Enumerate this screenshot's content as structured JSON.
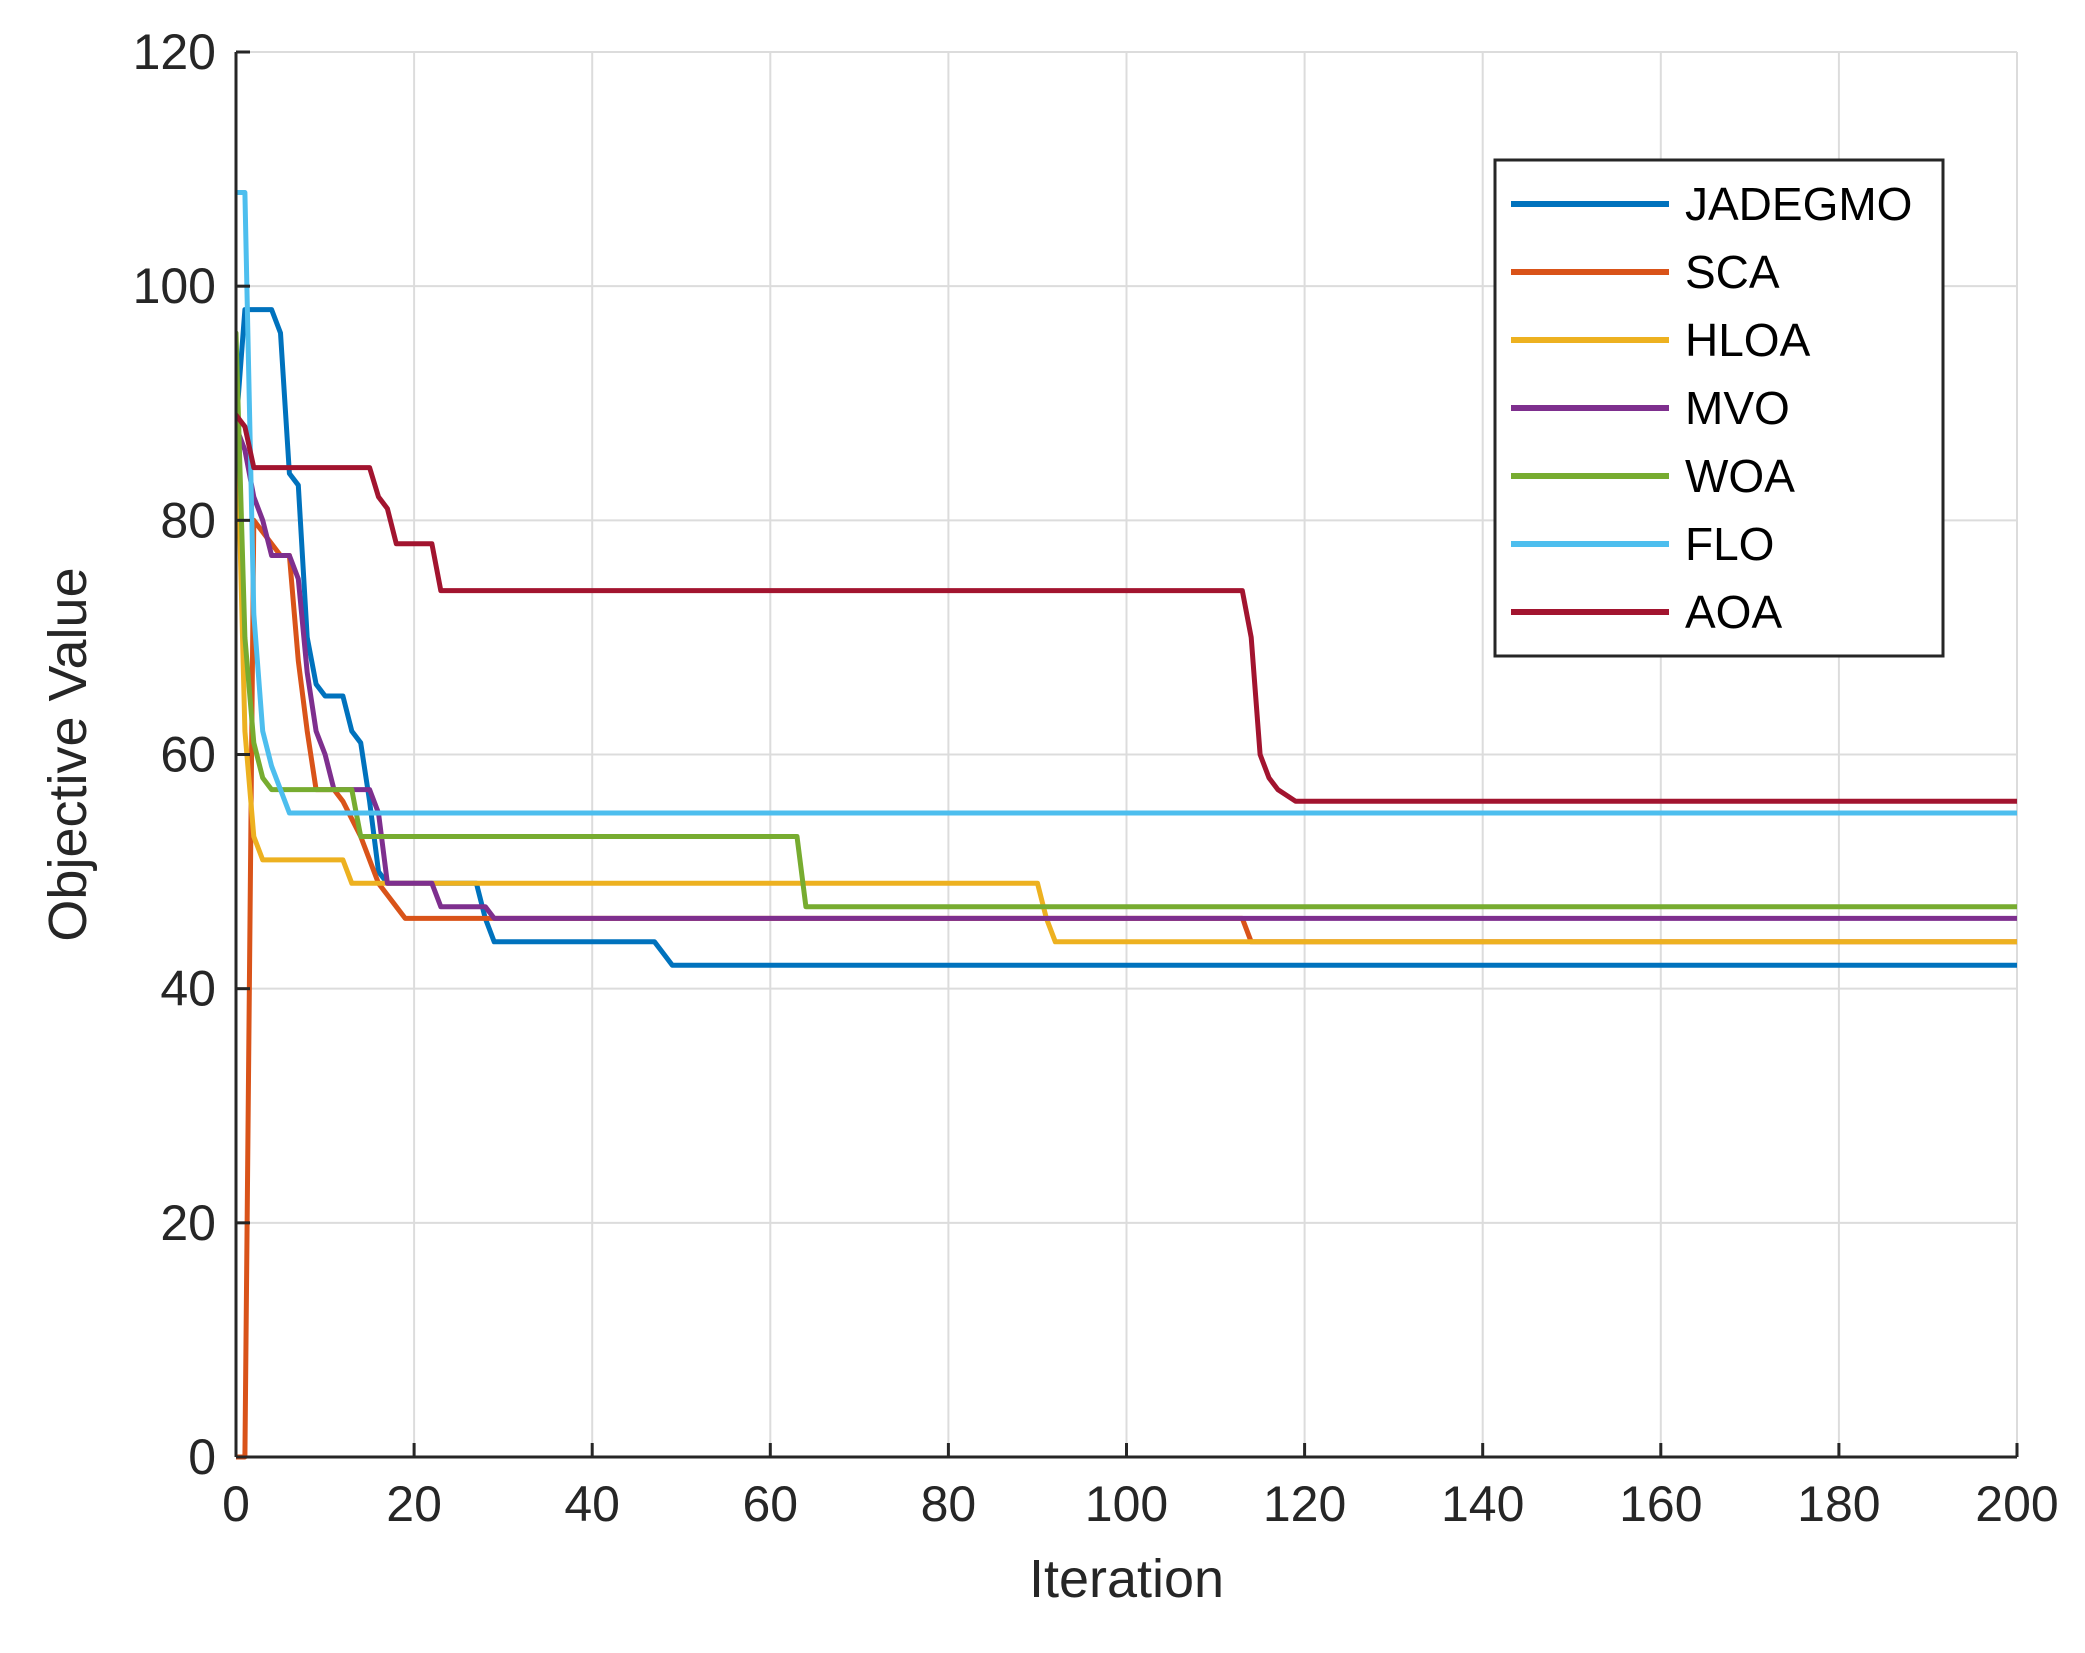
{
  "chart_data": {
    "type": "line",
    "title": "",
    "xlabel": "Iteration",
    "ylabel": "Objective Value",
    "xlim": [
      0,
      200
    ],
    "ylim": [
      0,
      120
    ],
    "xticks": [
      0,
      20,
      40,
      60,
      80,
      100,
      120,
      140,
      160,
      180,
      200
    ],
    "yticks": [
      0,
      20,
      40,
      60,
      80,
      100,
      120
    ],
    "grid": true,
    "legend_position": "top-right",
    "series": [
      {
        "name": "JADEGMO",
        "color": "#0072BD",
        "points": [
          [
            0,
            88
          ],
          [
            1,
            98
          ],
          [
            2,
            98
          ],
          [
            4,
            98
          ],
          [
            5,
            96
          ],
          [
            6,
            84
          ],
          [
            7,
            83
          ],
          [
            8,
            70
          ],
          [
            9,
            66
          ],
          [
            10,
            65
          ],
          [
            12,
            65
          ],
          [
            13,
            62
          ],
          [
            14,
            61
          ],
          [
            15,
            56
          ],
          [
            16,
            50
          ],
          [
            17,
            49
          ],
          [
            26,
            49
          ],
          [
            27,
            49
          ],
          [
            28,
            46
          ],
          [
            29,
            44
          ],
          [
            47,
            44
          ],
          [
            48,
            43
          ],
          [
            49,
            42
          ],
          [
            200,
            42
          ]
        ]
      },
      {
        "name": "SCA",
        "color": "#D95319",
        "points": [
          [
            0,
            0
          ],
          [
            1,
            0
          ],
          [
            2,
            80
          ],
          [
            3,
            79
          ],
          [
            5,
            77
          ],
          [
            6,
            77
          ],
          [
            7,
            68
          ],
          [
            8,
            62
          ],
          [
            9,
            57
          ],
          [
            11,
            57
          ],
          [
            12,
            56
          ],
          [
            14,
            53
          ],
          [
            16,
            49
          ],
          [
            17,
            48
          ],
          [
            18,
            47
          ],
          [
            19,
            46
          ],
          [
            113,
            46
          ],
          [
            114,
            44
          ],
          [
            200,
            44
          ]
        ]
      },
      {
        "name": "HLOA",
        "color": "#EDB120",
        "points": [
          [
            0,
            92
          ],
          [
            1,
            62
          ],
          [
            2,
            53
          ],
          [
            3,
            51
          ],
          [
            12,
            51
          ],
          [
            13,
            49
          ],
          [
            90,
            49
          ],
          [
            91,
            46
          ],
          [
            92,
            44
          ],
          [
            200,
            44
          ]
        ]
      },
      {
        "name": "MVO",
        "color": "#7E2F8E",
        "points": [
          [
            0,
            88
          ],
          [
            1,
            86
          ],
          [
            2,
            82
          ],
          [
            3,
            80
          ],
          [
            4,
            77
          ],
          [
            6,
            77
          ],
          [
            7,
            75
          ],
          [
            8,
            67
          ],
          [
            9,
            62
          ],
          [
            10,
            60
          ],
          [
            11,
            57
          ],
          [
            15,
            57
          ],
          [
            16,
            55
          ],
          [
            17,
            49
          ],
          [
            22,
            49
          ],
          [
            23,
            47
          ],
          [
            28,
            47
          ],
          [
            29,
            46
          ],
          [
            200,
            46
          ]
        ]
      },
      {
        "name": "WOA",
        "color": "#77AC30",
        "points": [
          [
            0,
            96
          ],
          [
            1,
            70
          ],
          [
            2,
            61
          ],
          [
            3,
            58
          ],
          [
            4,
            57
          ],
          [
            13,
            57
          ],
          [
            14,
            53
          ],
          [
            63,
            53
          ],
          [
            64,
            47
          ],
          [
            200,
            47
          ]
        ]
      },
      {
        "name": "FLO",
        "color": "#4DBEEE",
        "points": [
          [
            0,
            108
          ],
          [
            1,
            108
          ],
          [
            2,
            72
          ],
          [
            3,
            62
          ],
          [
            4,
            59
          ],
          [
            5,
            57
          ],
          [
            6,
            55
          ],
          [
            200,
            55
          ]
        ]
      },
      {
        "name": "AOA",
        "color": "#A2142F",
        "points": [
          [
            0,
            89
          ],
          [
            1,
            88
          ],
          [
            2,
            84.5
          ],
          [
            15,
            84.5
          ],
          [
            16,
            82
          ],
          [
            17,
            81
          ],
          [
            18,
            78
          ],
          [
            22,
            78
          ],
          [
            23,
            74
          ],
          [
            113,
            74
          ],
          [
            114,
            70
          ],
          [
            115,
            60
          ],
          [
            116,
            58
          ],
          [
            117,
            57
          ],
          [
            119,
            56
          ],
          [
            200,
            56
          ]
        ]
      }
    ]
  }
}
